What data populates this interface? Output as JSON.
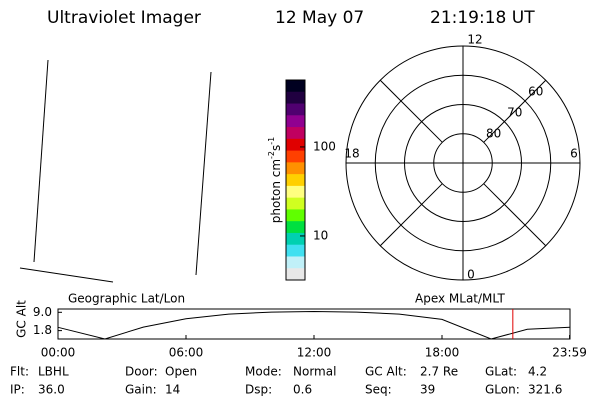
{
  "header": {
    "title": "Ultraviolet Imager",
    "date": "12 May 07",
    "time": "21:19:18 UT"
  },
  "colorbar": {
    "label": [
      "photon cm",
      "-2",
      "s",
      "-1"
    ],
    "clim": [
      3.2,
      565
    ],
    "log": true,
    "ticks": [
      {
        "value": 100,
        "label": "100"
      },
      {
        "value": 10,
        "label": "10"
      }
    ],
    "colors": [
      "#000020",
      "#200040",
      "#500070",
      "#900090",
      "#c00060",
      "#e00000",
      "#ff4000",
      "#ff9000",
      "#ffd000",
      "#ffff80",
      "#d0ff20",
      "#60ff00",
      "#00e040",
      "#00d0b0",
      "#40e0f0",
      "#c0f0f8",
      "#e8e8e8"
    ]
  },
  "polar": {
    "lat_min": 50,
    "rings": [
      60,
      70,
      80
    ],
    "mlt_labels": [
      "12",
      "18",
      "6",
      "0"
    ]
  },
  "altitude": {
    "label": "GC Alt",
    "left_title": "Geographic Lat/Lon",
    "right_title": "Apex MLat/MLT",
    "ylim": [
      -1.5,
      10.3
    ],
    "yticks": [
      {
        "value": 9,
        "label": "9.0"
      },
      1.8
    ],
    "xlim": [
      0,
      24
    ],
    "xticks": [
      {
        "value": 0,
        "label": "00:00"
      },
      {
        "value": 6,
        "label": "06:00"
      },
      {
        "value": 12,
        "label": "12:00"
      },
      {
        "value": 18,
        "label": "18:00"
      },
      {
        "value": 23.98,
        "label": "23:59"
      }
    ],
    "x": [
      0,
      2.2,
      4,
      6,
      8,
      10,
      12,
      14,
      16,
      18,
      20.3,
      22,
      24
    ],
    "values": [
      3.1,
      -1.5,
      3.2,
      6.5,
      8.3,
      9.1,
      9.3,
      9.1,
      8.3,
      6.2,
      -1.5,
      2.3,
      3.1
    ],
    "current_time": 21.32,
    "marker_color": "#e00000"
  },
  "fields": [
    [
      {
        "label": "Flt:",
        "value": "LBHL"
      },
      {
        "label": "IP:",
        "value": "36.0"
      }
    ],
    [
      {
        "label": "Door:",
        "value": "Open"
      },
      {
        "label": "Gain:",
        "value": "14"
      }
    ],
    [
      {
        "label": "Mode:",
        "value": "Normal"
      },
      {
        "label": "Dsp:",
        "value": "0.6"
      }
    ],
    [
      {
        "label": "GC Alt:",
        "value": "2.7 Re"
      },
      {
        "label": "Seq:",
        "value": "39"
      }
    ],
    [
      {
        "label": "GLat:",
        "value": "4.2"
      },
      {
        "label": "GLon:",
        "value": "321.6"
      }
    ]
  ]
}
